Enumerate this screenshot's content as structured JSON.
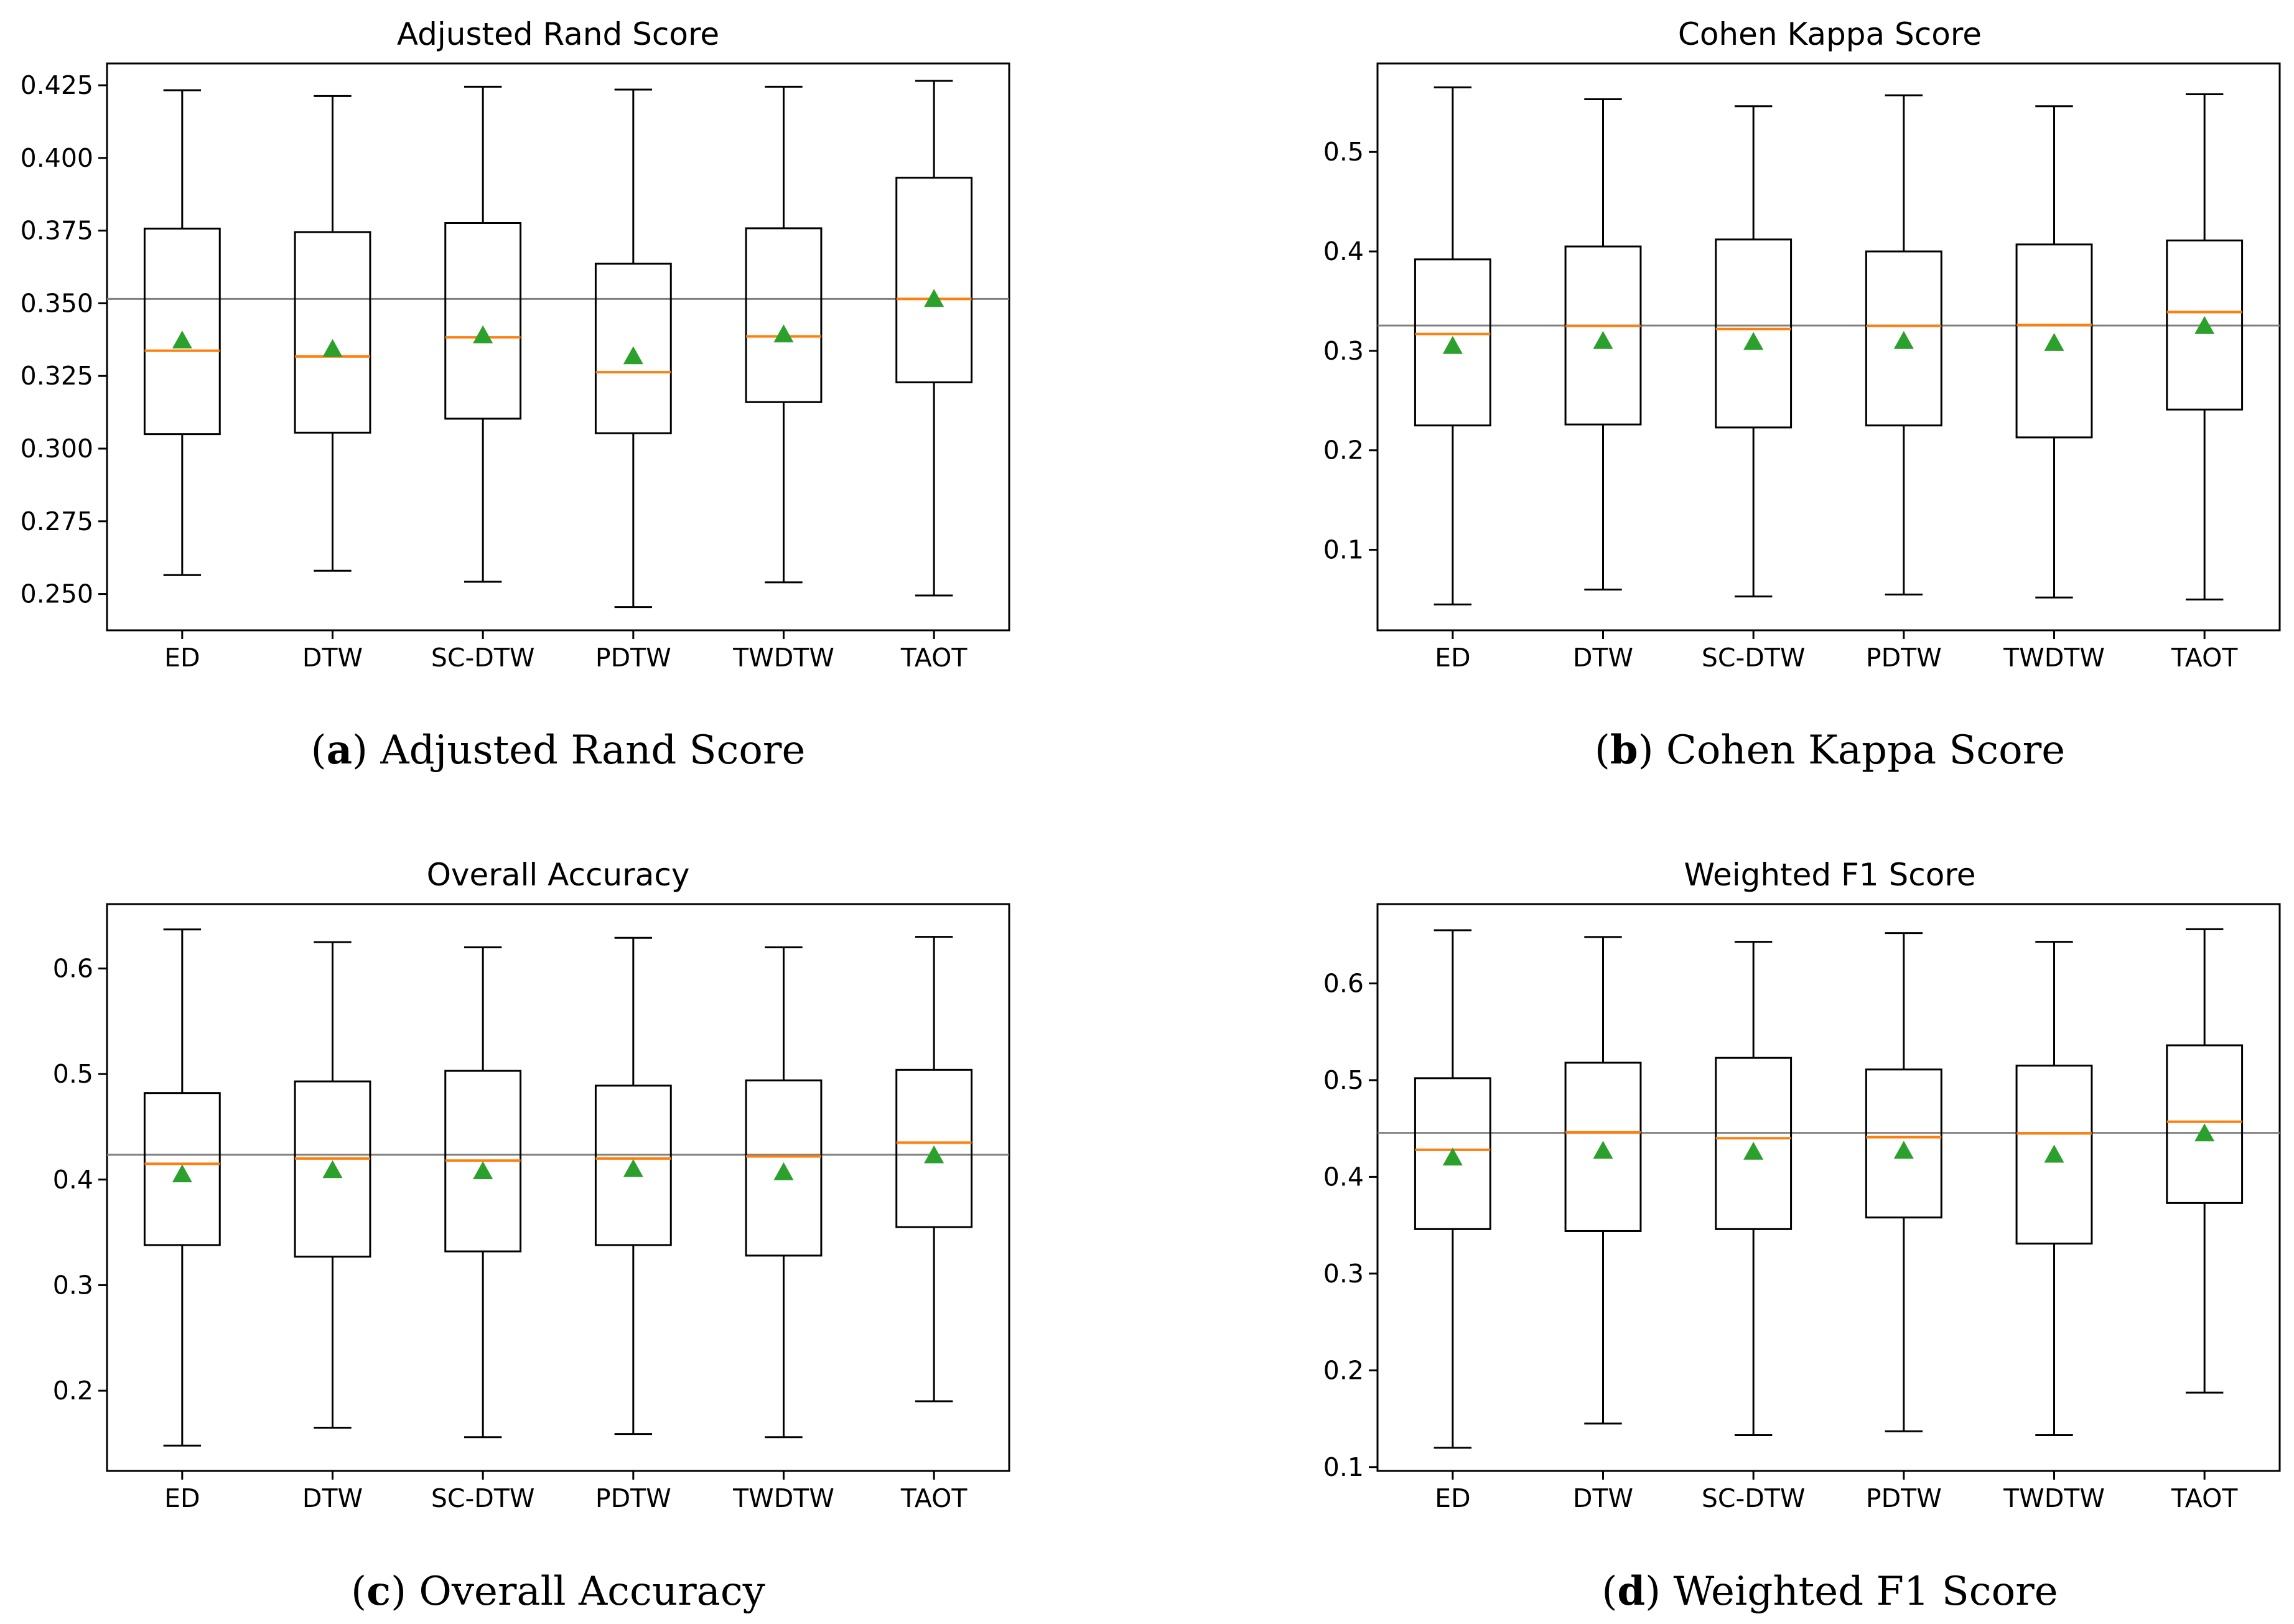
{
  "chart_data": [
    {
      "type": "box",
      "title": "Adjusted Rand Score",
      "caption_letter": "a",
      "caption_text": "Adjusted Rand Score",
      "categories": [
        "ED",
        "DTW",
        "SC-DTW",
        "PDTW",
        "TWDTW",
        "TAOT"
      ],
      "ylim": [
        0.2375,
        0.4325
      ],
      "yticks": [
        0.25,
        0.275,
        0.3,
        0.325,
        0.35,
        0.375,
        0.4,
        0.425
      ],
      "ytick_labels": [
        "0.250",
        "0.275",
        "0.300",
        "0.325",
        "0.350",
        "0.375",
        "0.400",
        "0.425"
      ],
      "reference_line": 0.3515,
      "boxes": [
        {
          "whislo": 0.2565,
          "q1": 0.305,
          "med": 0.3337,
          "q3": 0.3757,
          "whishi": 0.4233,
          "mean": 0.3372
        },
        {
          "whislo": 0.258,
          "q1": 0.3055,
          "med": 0.3317,
          "q3": 0.3745,
          "whishi": 0.4213,
          "mean": 0.3343
        },
        {
          "whislo": 0.2542,
          "q1": 0.3103,
          "med": 0.3383,
          "q3": 0.3776,
          "whishi": 0.4245,
          "mean": 0.339
        },
        {
          "whislo": 0.2455,
          "q1": 0.3053,
          "med": 0.3263,
          "q3": 0.3636,
          "whishi": 0.4235,
          "mean": 0.3318
        },
        {
          "whislo": 0.254,
          "q1": 0.316,
          "med": 0.3386,
          "q3": 0.3758,
          "whishi": 0.4245,
          "mean": 0.3393
        },
        {
          "whislo": 0.2495,
          "q1": 0.3228,
          "med": 0.3515,
          "q3": 0.3932,
          "whishi": 0.4265,
          "mean": 0.3515
        }
      ]
    },
    {
      "type": "box",
      "title": "Cohen Kappa Score",
      "caption_letter": "b",
      "caption_text": "Cohen Kappa Score",
      "categories": [
        "ED",
        "DTW",
        "SC-DTW",
        "PDTW",
        "TWDTW",
        "TAOT"
      ],
      "ylim": [
        0.019,
        0.589
      ],
      "yticks": [
        0.1,
        0.2,
        0.3,
        0.4,
        0.5
      ],
      "ytick_labels": [
        "0.1",
        "0.2",
        "0.3",
        "0.4",
        "0.5"
      ],
      "reference_line": 0.3255,
      "boxes": [
        {
          "whislo": 0.045,
          "q1": 0.225,
          "med": 0.317,
          "q3": 0.392,
          "whishi": 0.565,
          "mean": 0.305
        },
        {
          "whislo": 0.06,
          "q1": 0.226,
          "med": 0.325,
          "q3": 0.405,
          "whishi": 0.553,
          "mean": 0.31
        },
        {
          "whislo": 0.053,
          "q1": 0.223,
          "med": 0.322,
          "q3": 0.412,
          "whishi": 0.546,
          "mean": 0.309
        },
        {
          "whislo": 0.055,
          "q1": 0.225,
          "med": 0.325,
          "q3": 0.4,
          "whishi": 0.557,
          "mean": 0.31
        },
        {
          "whislo": 0.052,
          "q1": 0.213,
          "med": 0.326,
          "q3": 0.407,
          "whishi": 0.546,
          "mean": 0.308
        },
        {
          "whislo": 0.05,
          "q1": 0.241,
          "med": 0.339,
          "q3": 0.411,
          "whishi": 0.558,
          "mean": 0.325
        }
      ]
    },
    {
      "type": "box",
      "title": "Overall Accuracy",
      "caption_letter": "c",
      "caption_text": "Overall Accuracy",
      "categories": [
        "ED",
        "DTW",
        "SC-DTW",
        "PDTW",
        "TWDTW",
        "TAOT"
      ],
      "ylim": [
        0.124,
        0.661
      ],
      "yticks": [
        0.2,
        0.3,
        0.4,
        0.5,
        0.6
      ],
      "ytick_labels": [
        "0.2",
        "0.3",
        "0.4",
        "0.5",
        "0.6"
      ],
      "reference_line": 0.4235,
      "boxes": [
        {
          "whislo": 0.148,
          "q1": 0.338,
          "med": 0.415,
          "q3": 0.482,
          "whishi": 0.637,
          "mean": 0.405
        },
        {
          "whislo": 0.165,
          "q1": 0.327,
          "med": 0.42,
          "q3": 0.493,
          "whishi": 0.625,
          "mean": 0.409
        },
        {
          "whislo": 0.156,
          "q1": 0.332,
          "med": 0.418,
          "q3": 0.503,
          "whishi": 0.62,
          "mean": 0.408
        },
        {
          "whislo": 0.159,
          "q1": 0.338,
          "med": 0.42,
          "q3": 0.489,
          "whishi": 0.629,
          "mean": 0.41
        },
        {
          "whislo": 0.156,
          "q1": 0.328,
          "med": 0.422,
          "q3": 0.494,
          "whishi": 0.62,
          "mean": 0.407
        },
        {
          "whislo": 0.19,
          "q1": 0.355,
          "med": 0.435,
          "q3": 0.504,
          "whishi": 0.63,
          "mean": 0.423
        }
      ]
    },
    {
      "type": "box",
      "title": "Weighted F1 Score",
      "caption_letter": "d",
      "caption_text": "Weighted F1 Score",
      "categories": [
        "ED",
        "DTW",
        "SC-DTW",
        "PDTW",
        "TWDTW",
        "TAOT"
      ],
      "ylim": [
        0.096,
        0.682
      ],
      "yticks": [
        0.1,
        0.2,
        0.3,
        0.4,
        0.5,
        0.6
      ],
      "ytick_labels": [
        "0.1",
        "0.2",
        "0.3",
        "0.4",
        "0.5",
        "0.6"
      ],
      "reference_line": 0.4455,
      "boxes": [
        {
          "whislo": 0.12,
          "q1": 0.346,
          "med": 0.428,
          "q3": 0.502,
          "whishi": 0.655,
          "mean": 0.42
        },
        {
          "whislo": 0.145,
          "q1": 0.344,
          "med": 0.446,
          "q3": 0.518,
          "whishi": 0.648,
          "mean": 0.427
        },
        {
          "whislo": 0.133,
          "q1": 0.346,
          "med": 0.44,
          "q3": 0.523,
          "whishi": 0.643,
          "mean": 0.426
        },
        {
          "whislo": 0.137,
          "q1": 0.358,
          "med": 0.441,
          "q3": 0.511,
          "whishi": 0.652,
          "mean": 0.427
        },
        {
          "whislo": 0.133,
          "q1": 0.331,
          "med": 0.445,
          "q3": 0.515,
          "whishi": 0.643,
          "mean": 0.423
        },
        {
          "whislo": 0.177,
          "q1": 0.373,
          "med": 0.457,
          "q3": 0.536,
          "whishi": 0.656,
          "mean": 0.445
        }
      ]
    }
  ],
  "colors": {
    "box_edge": "#000000",
    "median": "#ff7f0e",
    "mean_marker": "#2ca02c",
    "reference_line": "#808080"
  }
}
